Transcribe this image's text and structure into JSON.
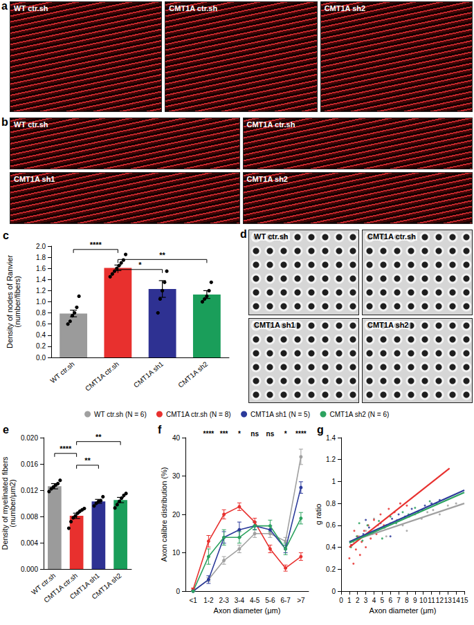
{
  "panels": [
    {
      "letter": "a",
      "images": [
        "WT ctr.sh",
        "CMT1A ctr.sh",
        "CMT1A sh2"
      ]
    },
    {
      "letter": "b",
      "images": [
        "WT ctr.sh",
        "CMT1A ctr.sh",
        "CMT1A sh1",
        "CMT1A sh2"
      ]
    },
    {
      "letter": "d",
      "images": [
        "WT ctr.sh",
        "CMT1A ctr.sh",
        "CMT1A sh1",
        "CMT1A sh2"
      ]
    }
  ],
  "chart_data": [
    {
      "panel": "c",
      "type": "bar",
      "ylabel": "Density of nodes of Ranvier (number/fibers)",
      "categories": [
        "WT ctr.sh",
        "CMT1A ctr.sh",
        "CMT1A sh1",
        "CMT1A sh2"
      ],
      "values": [
        0.79,
        1.61,
        1.23,
        1.13
      ],
      "errors": [
        0.06,
        0.05,
        0.15,
        0.07
      ],
      "points": [
        [
          0.6,
          0.65,
          0.75,
          0.8,
          0.9,
          1.1
        ],
        [
          1.45,
          1.5,
          1.55,
          1.6,
          1.65,
          1.7,
          1.75,
          1.85
        ],
        [
          0.8,
          1.05,
          1.2,
          1.35,
          1.55
        ],
        [
          1.0,
          1.05,
          1.1,
          1.2,
          1.35
        ]
      ],
      "colors": [
        "#9b9b9b",
        "#e8302e",
        "#2e3192",
        "#1a9e5a"
      ],
      "ylim": [
        0,
        2
      ],
      "yticks": [
        {
          "value": 0,
          "label": "0.0"
        },
        0.2,
        0.4,
        0.6,
        0.8,
        {
          "value": 1,
          "label": "1.0"
        },
        1.2,
        1.4,
        1.6,
        1.8,
        {
          "value": 2,
          "label": "2.0"
        }
      ],
      "annotations": [
        {
          "from": "WT ctr.sh",
          "to": "CMT1A ctr.sh",
          "text": "****"
        },
        {
          "from": "CMT1A ctr.sh",
          "to": "CMT1A sh2",
          "text": "**"
        },
        {
          "from": "CMT1A ctr.sh",
          "to": "CMT1A sh1",
          "text": "*"
        }
      ],
      "grid": false
    },
    {
      "panel": "e",
      "type": "bar",
      "ylabel": "Density of myelinated fibers (number/μm2)",
      "categories": [
        "WT ctr.sh",
        "CMT1A ctr.sh",
        "CMT1A sh1",
        "CMT1A sh2"
      ],
      "values": [
        0.0126,
        0.0081,
        0.0103,
        0.0105
      ],
      "errors": [
        0.0004,
        0.0004,
        0.0003,
        0.0004
      ],
      "points": [
        [
          0.0118,
          0.0122,
          0.0125,
          0.0128,
          0.013,
          0.0135
        ],
        [
          0.0062,
          0.0072,
          0.0078,
          0.0081,
          0.0085,
          0.0088,
          0.009,
          0.0092
        ],
        [
          0.0096,
          0.01,
          0.0103,
          0.0104,
          0.011
        ],
        [
          0.0093,
          0.0098,
          0.0103,
          0.0108,
          0.0112,
          0.0115
        ]
      ],
      "colors": [
        "#9b9b9b",
        "#e8302e",
        "#2e3192",
        "#1a9e5a"
      ],
      "ylim": [
        0,
        0.02
      ],
      "yticks": [
        {
          "value": 0,
          "label": "0.000"
        },
        0.004,
        0.008,
        0.012,
        0.016,
        {
          "value": 0.02,
          "label": "0.020"
        }
      ],
      "annotations": [
        {
          "from": "CMT1A ctr.sh",
          "to": "CMT1A sh2",
          "text": "**"
        },
        {
          "from": "WT ctr.sh",
          "to": "CMT1A ctr.sh",
          "text": "****"
        },
        {
          "from": "CMT1A ctr.sh",
          "to": "CMT1A sh1",
          "text": "**"
        }
      ],
      "grid": false
    },
    {
      "panel": "f",
      "type": "line",
      "xlabel": "Axon diameter (μm)",
      "ylabel": "Axon calibre distribution (%)",
      "categories": [
        "<1",
        "1-2",
        "2-3",
        "3-4",
        "4-5",
        "5-6",
        "6-7",
        ">7"
      ],
      "series": [
        {
          "name": "WT ctr.sh (N = 6)",
          "color": "#a0a0a0",
          "values": [
            0,
            3,
            8,
            11,
            15,
            15,
            13,
            35
          ],
          "errors": [
            0,
            0.5,
            1,
            1,
            1,
            1,
            1,
            2
          ]
        },
        {
          "name": "CMT1A ctr.sh (N = 8)",
          "color": "#e8312f",
          "values": [
            0.5,
            13,
            20,
            22,
            18,
            11,
            6,
            9
          ],
          "errors": [
            0.3,
            1.5,
            1.2,
            1,
            1,
            1,
            0.8,
            1
          ]
        },
        {
          "name": "CMT1A sh1 (N = 5)",
          "color": "#2b3a9a",
          "values": [
            0,
            3,
            14,
            16,
            17,
            16,
            11,
            27
          ],
          "errors": [
            0,
            1,
            1.5,
            2,
            1,
            1,
            1,
            1.5
          ]
        },
        {
          "name": "CMT1A sh2 (N = 6)",
          "color": "#2ca25f",
          "values": [
            0,
            9,
            14,
            14,
            17,
            17,
            11,
            19
          ],
          "errors": [
            0,
            2,
            2,
            1.5,
            1,
            1.5,
            1.5,
            1.5
          ]
        }
      ],
      "ylim": [
        0,
        40
      ],
      "yticks": [
        0,
        10,
        20,
        30,
        40
      ],
      "annotations": [
        {
          "category": "1-2",
          "text": "****"
        },
        {
          "category": "2-3",
          "text": "***"
        },
        {
          "category": "3-4",
          "text": "*"
        },
        {
          "category": "4-5",
          "text": "ns"
        },
        {
          "category": "5-6",
          "text": "ns"
        },
        {
          "category": "6-7",
          "text": "*"
        },
        {
          "category": ">7",
          "text": "****"
        }
      ],
      "marker": "circle",
      "legend": "top",
      "grid": false
    },
    {
      "panel": "g",
      "type": "scatter",
      "xlabel": "Axon diameter (μm)",
      "ylabel": "g ratio",
      "series": [
        {
          "name": "WT ctr.sh (N = 6)",
          "color": "#a0a0a0",
          "values": [
            [
              1.5,
              0.45
            ],
            [
              2.2,
              0.5
            ],
            [
              3,
              0.55
            ],
            [
              3.8,
              0.52
            ],
            [
              4.5,
              0.6
            ],
            [
              5.2,
              0.58
            ],
            [
              6,
              0.62
            ],
            [
              6.8,
              0.65
            ],
            [
              7.5,
              0.6
            ],
            [
              8.3,
              0.68
            ],
            [
              9,
              0.7
            ],
            [
              9.8,
              0.66
            ],
            [
              10.5,
              0.72
            ],
            [
              11.2,
              0.74
            ],
            [
              12,
              0.7
            ],
            [
              13,
              0.78
            ],
            [
              14,
              0.8
            ],
            [
              5.5,
              0.5
            ],
            [
              8,
              0.55
            ],
            [
              4,
              0.66
            ]
          ],
          "fit": [
            [
              1,
              0.45
            ],
            [
              15,
              0.8
            ]
          ]
        },
        {
          "name": "CMT1A ctr.sh (N = 8)",
          "color": "#e8312f",
          "values": [
            [
              1,
              0.3
            ],
            [
              1.2,
              0.42
            ],
            [
              1.5,
              0.25
            ],
            [
              1.8,
              0.38
            ],
            [
              2,
              0.5
            ],
            [
              2.3,
              0.33
            ],
            [
              2.5,
              0.45
            ],
            [
              2.8,
              0.55
            ],
            [
              3,
              0.4
            ],
            [
              3.3,
              0.6
            ],
            [
              3.6,
              0.48
            ],
            [
              4,
              0.65
            ],
            [
              4.3,
              0.52
            ],
            [
              4.8,
              0.7
            ],
            [
              5.2,
              0.6
            ],
            [
              5.8,
              0.75
            ],
            [
              6.5,
              0.72
            ],
            [
              7.2,
              0.8
            ],
            [
              8,
              0.78
            ],
            [
              1.6,
              0.55
            ]
          ],
          "fit": [
            [
              1,
              0.4
            ],
            [
              13.2,
              1.12
            ]
          ]
        },
        {
          "name": "CMT1A sh1 (N = 5)",
          "color": "#2b3a9a",
          "values": [
            [
              1.3,
              0.42
            ],
            [
              2,
              0.48
            ],
            [
              2.7,
              0.52
            ],
            [
              3.4,
              0.58
            ],
            [
              4.1,
              0.55
            ],
            [
              4.8,
              0.62
            ],
            [
              5.5,
              0.6
            ],
            [
              6.2,
              0.66
            ],
            [
              7,
              0.7
            ],
            [
              7.8,
              0.68
            ],
            [
              8.6,
              0.75
            ],
            [
              9.4,
              0.72
            ],
            [
              10.2,
              0.78
            ],
            [
              11,
              0.8
            ],
            [
              12,
              0.83
            ],
            [
              3,
              0.65
            ],
            [
              6,
              0.5
            ]
          ],
          "fit": [
            [
              1,
              0.45
            ],
            [
              15,
              0.92
            ]
          ]
        },
        {
          "name": "CMT1A sh2 (N = 6)",
          "color": "#2ca25f",
          "values": [
            [
              1.2,
              0.4
            ],
            [
              1.9,
              0.5
            ],
            [
              2.6,
              0.46
            ],
            [
              3.2,
              0.6
            ],
            [
              3.9,
              0.53
            ],
            [
              4.6,
              0.64
            ],
            [
              5.3,
              0.58
            ],
            [
              6,
              0.68
            ],
            [
              6.7,
              0.62
            ],
            [
              7.5,
              0.72
            ],
            [
              8.2,
              0.7
            ],
            [
              9,
              0.76
            ],
            [
              9.9,
              0.74
            ],
            [
              10.8,
              0.82
            ],
            [
              11.6,
              0.8
            ],
            [
              2.2,
              0.62
            ],
            [
              5,
              0.48
            ]
          ],
          "fit": [
            [
              1,
              0.44
            ],
            [
              15,
              0.9
            ]
          ]
        }
      ],
      "xlim": [
        0,
        15
      ],
      "xticks": [
        0,
        1,
        2,
        3,
        4,
        5,
        6,
        7,
        8,
        9,
        10,
        11,
        12,
        13,
        14,
        15
      ],
      "ylim": [
        0,
        1.4
      ],
      "yticks": [
        0,
        0.2,
        0.4,
        0.6,
        0.8,
        1,
        1.2,
        1.4
      ],
      "marker": "circle",
      "grid": false
    }
  ]
}
